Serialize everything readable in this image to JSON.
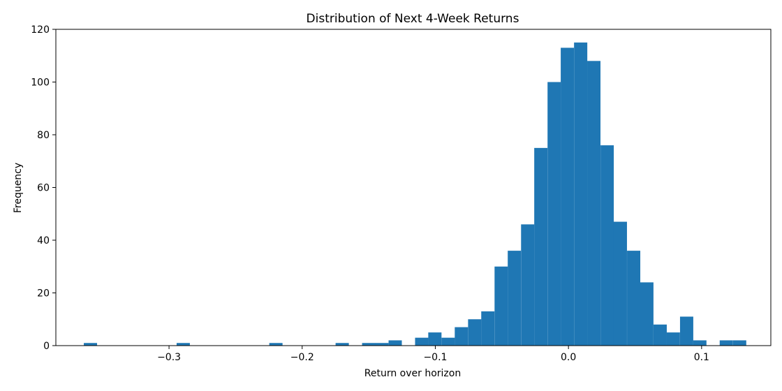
{
  "chart_data": {
    "type": "bar",
    "title": "Distribution of Next 4-Week Returns",
    "xlabel": "Return over horizon",
    "ylabel": "Frequency",
    "xlim": [
      -0.385,
      0.152
    ],
    "ylim": [
      0,
      120
    ],
    "xticks": [
      -0.3,
      -0.2,
      -0.1,
      0.0,
      0.1
    ],
    "xtick_labels": [
      "−0.3",
      "−0.2",
      "−0.1",
      "0.0",
      "0.1"
    ],
    "yticks": [
      0,
      20,
      40,
      60,
      80,
      100,
      120
    ],
    "ytick_labels": [
      "0",
      "20",
      "40",
      "60",
      "80",
      "100",
      "120"
    ],
    "bar_color": "#1f77b4",
    "grid": false,
    "legend": "none",
    "bin_width": 0.00995,
    "bins": [
      {
        "x0": -0.364,
        "count": 1
      },
      {
        "x0": -0.2943,
        "count": 1
      },
      {
        "x0": -0.2247,
        "count": 1
      },
      {
        "x0": -0.1749,
        "count": 1
      },
      {
        "x0": -0.155,
        "count": 1
      },
      {
        "x0": -0.1451,
        "count": 1
      },
      {
        "x0": -0.1351,
        "count": 2
      },
      {
        "x0": -0.1152,
        "count": 3
      },
      {
        "x0": -0.1053,
        "count": 5
      },
      {
        "x0": -0.0953,
        "count": 3
      },
      {
        "x0": -0.0854,
        "count": 7
      },
      {
        "x0": -0.0754,
        "count": 10
      },
      {
        "x0": -0.0655,
        "count": 13
      },
      {
        "x0": -0.0555,
        "count": 30
      },
      {
        "x0": -0.0456,
        "count": 36
      },
      {
        "x0": -0.0356,
        "count": 46
      },
      {
        "x0": -0.0257,
        "count": 75
      },
      {
        "x0": -0.0157,
        "count": 100
      },
      {
        "x0": -0.0058,
        "count": 113
      },
      {
        "x0": 0.0042,
        "count": 115
      },
      {
        "x0": 0.0141,
        "count": 108
      },
      {
        "x0": 0.0241,
        "count": 76
      },
      {
        "x0": 0.034,
        "count": 47
      },
      {
        "x0": 0.044,
        "count": 36
      },
      {
        "x0": 0.0539,
        "count": 24
      },
      {
        "x0": 0.0639,
        "count": 8
      },
      {
        "x0": 0.0738,
        "count": 5
      },
      {
        "x0": 0.0838,
        "count": 11
      },
      {
        "x0": 0.0937,
        "count": 2
      },
      {
        "x0": 0.1136,
        "count": 2
      },
      {
        "x0": 0.1236,
        "count": 2
      }
    ]
  }
}
